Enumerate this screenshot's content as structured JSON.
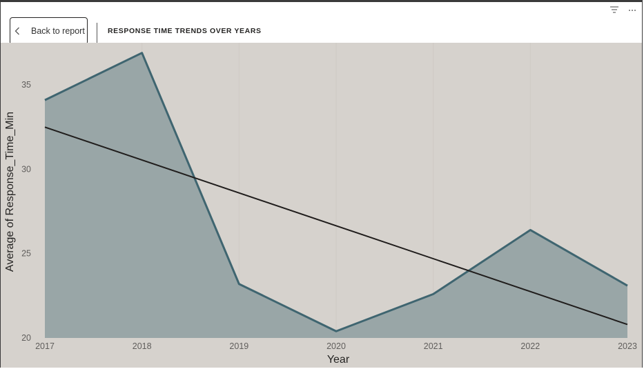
{
  "header": {
    "back_label": "Back to report",
    "back_icon": "chevron-left-icon",
    "title": "RESPONSE TIME TRENDS OVER YEARS",
    "filter_icon": "filter-icon",
    "more_icon": "more-options-icon"
  },
  "colors": {
    "plot_background": "#d6d2cd",
    "area_fill": "#99a6a7",
    "series_line": "#3f6570",
    "trend_line": "#201d1c"
  },
  "chart_data": {
    "type": "area",
    "title": "",
    "xlabel": "Year",
    "ylabel": "Average of Response_Time_Min",
    "categories": [
      "2017",
      "2018",
      "2019",
      "2020",
      "2021",
      "2022",
      "2023"
    ],
    "series": [
      {
        "values": [
          34.1,
          36.9,
          23.2,
          20.4,
          22.6,
          26.4,
          23.1
        ]
      }
    ],
    "trend_line": {
      "type": "linear",
      "start": 32.5,
      "end": 20.8
    },
    "yticks": [
      20,
      25,
      30,
      35
    ],
    "ylim": [
      20,
      37.5
    ],
    "grid": false,
    "legend": "none"
  }
}
